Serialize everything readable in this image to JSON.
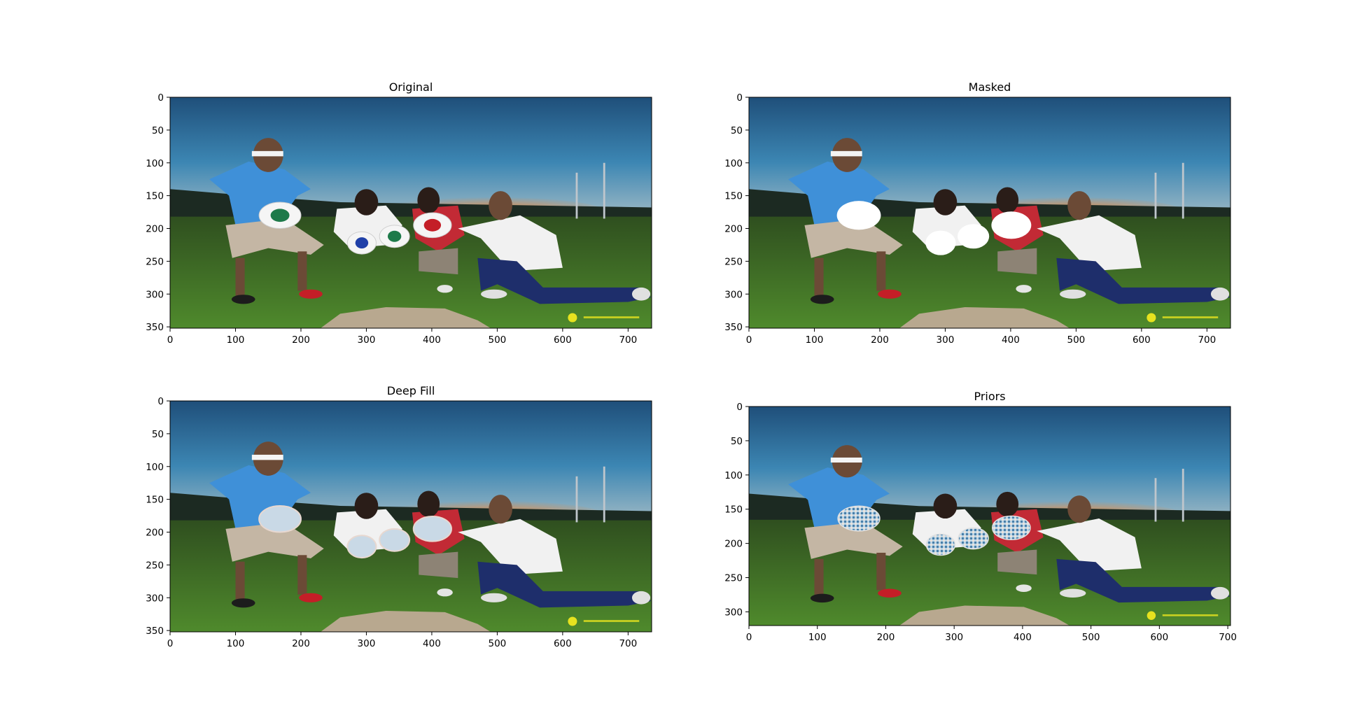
{
  "chart_data": [
    {
      "type": "image",
      "title": "Original",
      "xlim": [
        0,
        736
      ],
      "ylim": [
        352,
        0
      ],
      "xticks": [
        0,
        100,
        200,
        300,
        400,
        500,
        600,
        700
      ],
      "yticks": [
        0,
        50,
        100,
        150,
        200,
        250,
        300,
        350
      ],
      "discs": "colored",
      "masked": false
    },
    {
      "type": "image",
      "title": "Masked",
      "xlim": [
        0,
        736
      ],
      "ylim": [
        352,
        0
      ],
      "xticks": [
        0,
        100,
        200,
        300,
        400,
        500,
        600,
        700
      ],
      "yticks": [
        0,
        50,
        100,
        150,
        200,
        250,
        300,
        350
      ],
      "discs": "white-holes",
      "masked": true
    },
    {
      "type": "image",
      "title": "Deep Fill",
      "xlim": [
        0,
        736
      ],
      "ylim": [
        352,
        0
      ],
      "xticks": [
        0,
        100,
        200,
        300,
        400,
        500,
        600,
        700
      ],
      "yticks": [
        0,
        50,
        100,
        150,
        200,
        250,
        300,
        350
      ],
      "discs": "inpainted-smooth",
      "masked": false
    },
    {
      "type": "image",
      "title": "Priors",
      "xlim": [
        0,
        704
      ],
      "ylim": [
        320,
        0
      ],
      "xticks": [
        0,
        100,
        200,
        300,
        400,
        500,
        600,
        700
      ],
      "yticks": [
        0,
        50,
        100,
        150,
        200,
        250,
        300
      ],
      "discs": "inpainted-noisy",
      "masked": false
    }
  ],
  "colors": {
    "sky_top": "#1f4f7a",
    "sky_mid": "#3c86b3",
    "sky_horizon": "#9ab7c4",
    "sunset": "#e5873b",
    "grass_top": "#2f4f1f",
    "grass_bottom": "#4f8a2c",
    "blue_shirt": "#3f90d8",
    "white_shirt": "#f1f1f1",
    "shorts": "#c4b6a4",
    "jeans": "#1e2e6b",
    "watermark": "#e6e21f"
  }
}
